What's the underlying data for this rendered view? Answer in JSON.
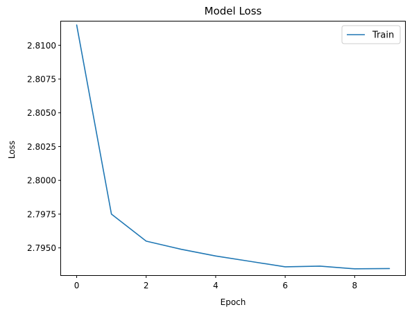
{
  "chart_data": {
    "type": "line",
    "title": "Model Loss",
    "xlabel": "Epoch",
    "ylabel": "Loss",
    "xlim": [
      -0.45,
      9.45
    ],
    "ylim": [
      2.79298,
      2.81176
    ],
    "xticks": [
      0,
      2,
      4,
      6,
      8
    ],
    "xtick_labels": [
      "0",
      "2",
      "4",
      "6",
      "8"
    ],
    "yticks": [
      2.795,
      2.7975,
      2.8,
      2.8025,
      2.805,
      2.8075,
      2.81
    ],
    "ytick_labels": [
      "2.7950",
      "2.7975",
      "2.8000",
      "2.8025",
      "2.8050",
      "2.8075",
      "2.8100"
    ],
    "grid": false,
    "legend_position": "top-right",
    "series": [
      {
        "name": "Train",
        "color": "#1f77b4",
        "x": [
          0,
          1,
          2,
          3,
          4,
          5,
          6,
          7,
          8,
          9
        ],
        "values": [
          2.8115,
          2.7975,
          2.7955,
          2.7949,
          2.7944,
          2.794,
          2.7936,
          2.79365,
          2.79345,
          2.79347
        ]
      }
    ]
  }
}
